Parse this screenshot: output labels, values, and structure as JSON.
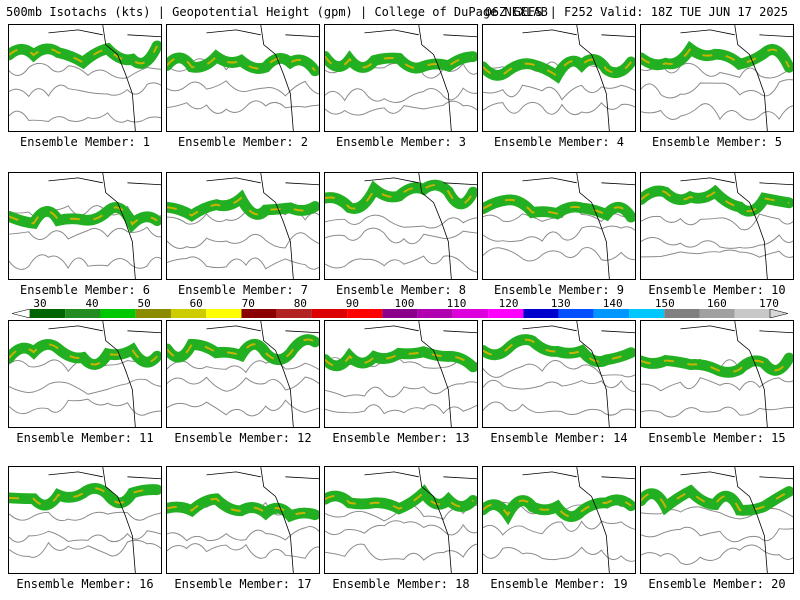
{
  "header": {
    "left": "500mb Isotachs (kts) | Geopotential Height (gpm) | College of DuPage NEXLAB",
    "right": "06Z GEFS | F252 Valid: 18Z TUE JUN 17 2025"
  },
  "members": [
    "Ensemble Member: 1",
    "Ensemble Member: 2",
    "Ensemble Member: 3",
    "Ensemble Member: 4",
    "Ensemble Member: 5",
    "Ensemble Member: 6",
    "Ensemble Member: 7",
    "Ensemble Member: 8",
    "Ensemble Member: 9",
    "Ensemble Member: 10",
    "Ensemble Member: 11",
    "Ensemble Member: 12",
    "Ensemble Member: 13",
    "Ensemble Member: 14",
    "Ensemble Member: 15",
    "Ensemble Member: 16",
    "Ensemble Member: 17",
    "Ensemble Member: 18",
    "Ensemble Member: 19",
    "Ensemble Member: 20"
  ],
  "colorbar": {
    "labels": [
      "30",
      "40",
      "50",
      "60",
      "70",
      "80",
      "90",
      "100",
      "110",
      "120",
      "130",
      "140",
      "150",
      "160",
      "170"
    ],
    "colors": [
      "#006400",
      "#228B22",
      "#00C800",
      "#8B8B00",
      "#CCCC00",
      "#FFFF00",
      "#8B0000",
      "#B22222",
      "#DD0000",
      "#FF0000",
      "#8B008B",
      "#B000B0",
      "#DD00DD",
      "#FF00FF",
      "#0000CC",
      "#0050FF",
      "#0096FF",
      "#00C8FF",
      "#808080",
      "#A0A0A0",
      "#C8C8C8"
    ]
  }
}
